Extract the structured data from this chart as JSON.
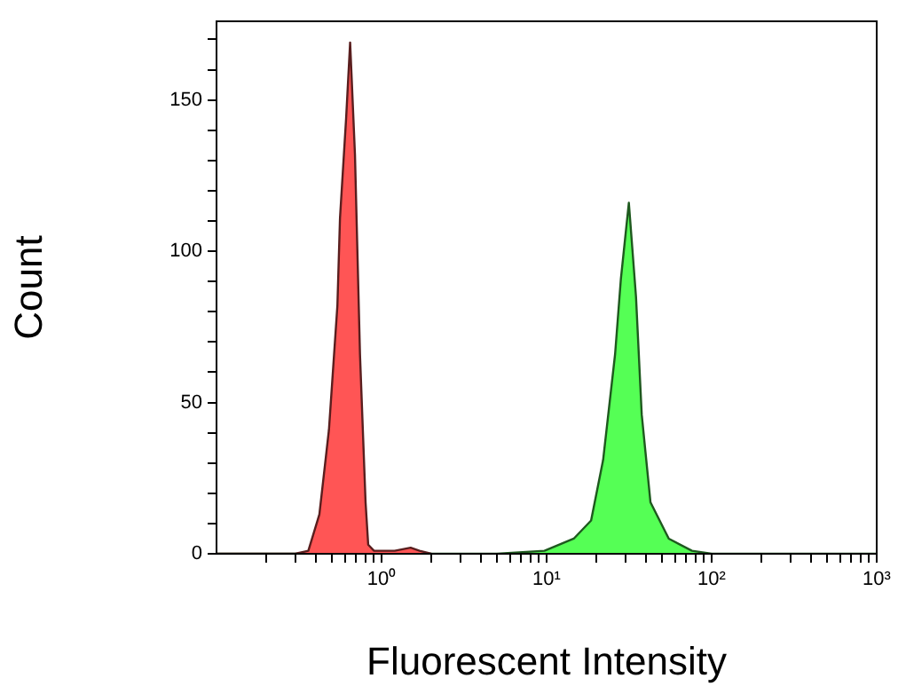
{
  "chart_data": {
    "type": "area",
    "xlabel": "Fluorescent Intensity",
    "ylabel": "Count",
    "log": "x",
    "grid": false,
    "legend": false,
    "marker": "none",
    "xlim": [
      0.1,
      1000
    ],
    "ylim": [
      0,
      176
    ],
    "xticks": [
      {
        "value": 0.2,
        "label": null
      },
      {
        "value": 0.3,
        "label": null
      },
      {
        "value": 0.4,
        "label": null
      },
      {
        "value": 0.5,
        "label": null
      },
      {
        "value": 0.6,
        "label": null
      },
      {
        "value": 0.7,
        "label": null
      },
      {
        "value": 0.8,
        "label": null
      },
      {
        "value": 0.9,
        "label": null
      },
      {
        "value": 1,
        "label": "10⁰"
      },
      {
        "value": 2,
        "label": null
      },
      {
        "value": 3,
        "label": null
      },
      {
        "value": 4,
        "label": null
      },
      {
        "value": 5,
        "label": null
      },
      {
        "value": 6,
        "label": null
      },
      {
        "value": 7,
        "label": null
      },
      {
        "value": 8,
        "label": null
      },
      {
        "value": 9,
        "label": null
      },
      {
        "value": 10,
        "label": "10¹"
      },
      {
        "value": 20,
        "label": null
      },
      {
        "value": 30,
        "label": null
      },
      {
        "value": 40,
        "label": null
      },
      {
        "value": 50,
        "label": null
      },
      {
        "value": 60,
        "label": null
      },
      {
        "value": 70,
        "label": null
      },
      {
        "value": 80,
        "label": null
      },
      {
        "value": 90,
        "label": null
      },
      {
        "value": 100,
        "label": "10²"
      },
      {
        "value": 200,
        "label": null
      },
      {
        "value": 300,
        "label": null
      },
      {
        "value": 400,
        "label": null
      },
      {
        "value": 500,
        "label": null
      },
      {
        "value": 600,
        "label": null
      },
      {
        "value": 700,
        "label": null
      },
      {
        "value": 800,
        "label": null
      },
      {
        "value": 900,
        "label": null
      },
      {
        "value": 1000,
        "label": "10³"
      }
    ],
    "yticks": [
      0,
      {
        "value": 10,
        "label": null
      },
      {
        "value": 20,
        "label": null
      },
      {
        "value": 30,
        "label": null
      },
      {
        "value": 40,
        "label": null
      },
      50,
      {
        "value": 60,
        "label": null
      },
      {
        "value": 70,
        "label": null
      },
      {
        "value": 80,
        "label": null
      },
      {
        "value": 90,
        "label": null
      },
      100,
      {
        "value": 110,
        "label": null
      },
      {
        "value": 120,
        "label": null
      },
      {
        "value": 130,
        "label": null
      },
      {
        "value": 140,
        "label": null
      },
      150,
      {
        "value": 160,
        "label": null
      },
      {
        "value": 170,
        "label": null
      }
    ],
    "series": [
      {
        "color": "#ff5555",
        "x": [
          0.1,
          0.3,
          0.36,
          0.42,
          0.48,
          0.54,
          0.56,
          0.61,
          0.645,
          0.69,
          0.74,
          0.8,
          0.83,
          0.9,
          1.2,
          1.5,
          1.7,
          2
        ],
        "values": [
          0,
          0,
          1,
          13,
          41,
          82,
          111,
          144,
          169,
          132,
          66,
          17,
          3,
          1,
          1,
          2,
          1,
          0
        ]
      },
      {
        "color": "#55ff55",
        "x": [
          0.1,
          1,
          5,
          9.7,
          14.6,
          18.6,
          22,
          26,
          28.2,
          31.5,
          34.8,
          37.7,
          42.6,
          55,
          76,
          100,
          1000
        ],
        "values": [
          0,
          0,
          0,
          1,
          5,
          11,
          31,
          66,
          91,
          116,
          85,
          46,
          17,
          5,
          1,
          0,
          0
        ]
      }
    ]
  }
}
